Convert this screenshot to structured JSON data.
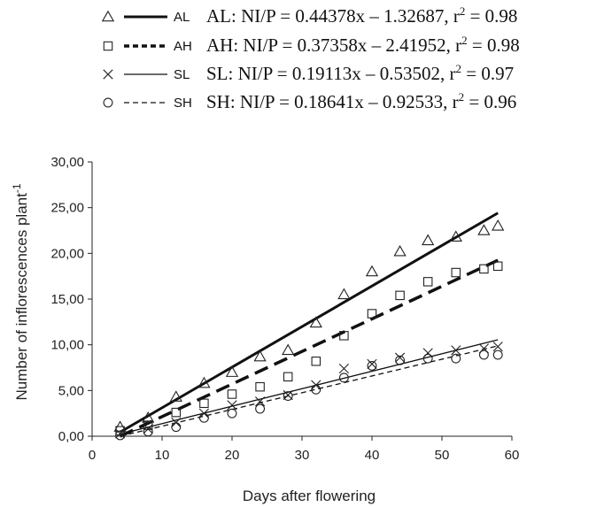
{
  "chart_data": {
    "type": "scatter",
    "title": "",
    "xlabel": "Days after flowering",
    "ylabel": "Number of inflorescences plant",
    "ylabel_sup": "-1",
    "xlim": [
      0,
      60
    ],
    "ylim": [
      0,
      30
    ],
    "x_ticks": [
      "0",
      "10",
      "20",
      "30",
      "40",
      "50",
      "60"
    ],
    "y_ticks": [
      "0,00",
      "5,00",
      "10,00",
      "15,00",
      "20,00",
      "25,00",
      "30,00"
    ],
    "grid": false,
    "legend_placement": "top",
    "x": [
      4,
      8,
      12,
      16,
      20,
      24,
      28,
      32,
      36,
      40,
      44,
      48,
      52,
      56,
      58
    ],
    "series": [
      {
        "name": "AL",
        "marker": "triangle",
        "line_style": "solid-thick",
        "equation": "AL: NI/P = 0.44378x – 1.32687, r",
        "r2": "= 0.98",
        "slope": 0.44378,
        "intercept": -1.32687,
        "values": [
          1.0,
          2.0,
          4.3,
          5.8,
          7.0,
          8.7,
          9.4,
          12.4,
          15.5,
          18.0,
          20.2,
          21.4,
          21.8,
          22.5,
          23.0
        ]
      },
      {
        "name": "AH",
        "marker": "square",
        "line_style": "dashed-thick",
        "equation": "AH: NI/P = 0.37358x –  2.41952, r",
        "r2": "= 0.98",
        "slope": 0.37358,
        "intercept": -2.41952,
        "values": [
          0.6,
          1.2,
          2.6,
          3.6,
          4.6,
          5.4,
          6.5,
          8.2,
          11.0,
          13.4,
          15.4,
          16.9,
          17.9,
          18.3,
          18.6
        ]
      },
      {
        "name": "SL",
        "marker": "x",
        "line_style": "solid-thin",
        "equation": "SL: NI/P = 0.19113x – 0.53502,  r",
        "r2": "= 0.97",
        "slope": 0.19113,
        "intercept": -0.53502,
        "values": [
          0.3,
          0.8,
          1.5,
          2.5,
          3.4,
          3.8,
          4.5,
          5.6,
          7.4,
          7.9,
          8.6,
          9.1,
          9.4,
          9.6,
          9.8
        ]
      },
      {
        "name": "SH",
        "marker": "circle",
        "line_style": "dashed-thin",
        "equation": "SH: NI/P = 0.18641x – 0.92533, r",
        "r2": "= 0.96",
        "slope": 0.18641,
        "intercept": -0.92533,
        "values": [
          0.1,
          0.5,
          1.0,
          2.0,
          2.5,
          3.0,
          4.4,
          5.1,
          6.4,
          7.7,
          8.3,
          8.5,
          8.5,
          8.9,
          8.9
        ]
      }
    ]
  }
}
